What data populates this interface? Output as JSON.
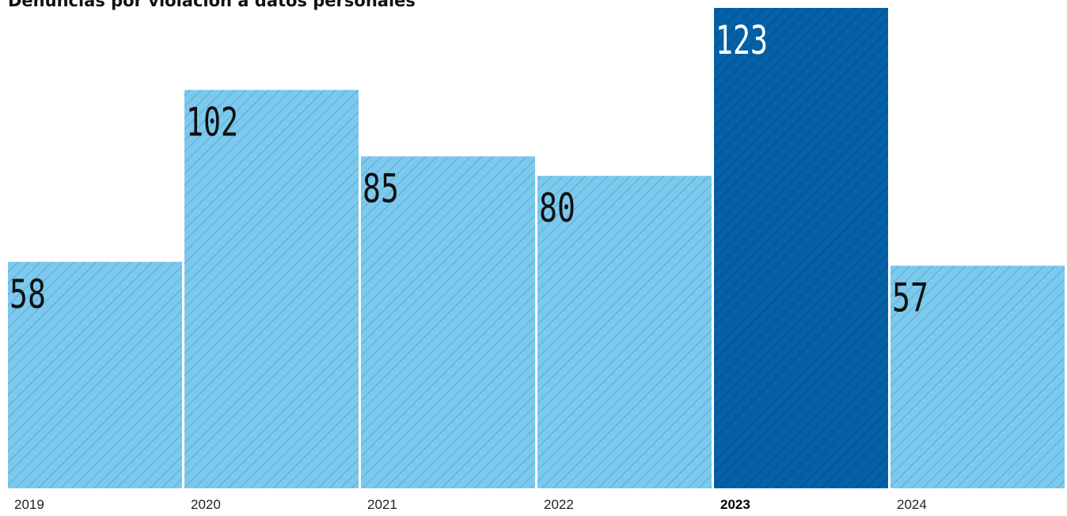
{
  "chart_data": {
    "type": "bar",
    "title": "Denuncias por violación a datos personales",
    "categories": [
      "2019",
      "2020",
      "2021",
      "2022",
      "2023",
      "2024"
    ],
    "values": [
      58,
      102,
      85,
      80,
      123,
      57
    ],
    "highlight_category": "2023",
    "ylim": [
      0,
      123
    ],
    "grid": false,
    "legend": "none",
    "colors": {
      "bar": "#7cc9ee",
      "bar_highlight": "#0461a8",
      "hatch": "#4a95c3",
      "hatch_highlight": "#033f74"
    }
  }
}
